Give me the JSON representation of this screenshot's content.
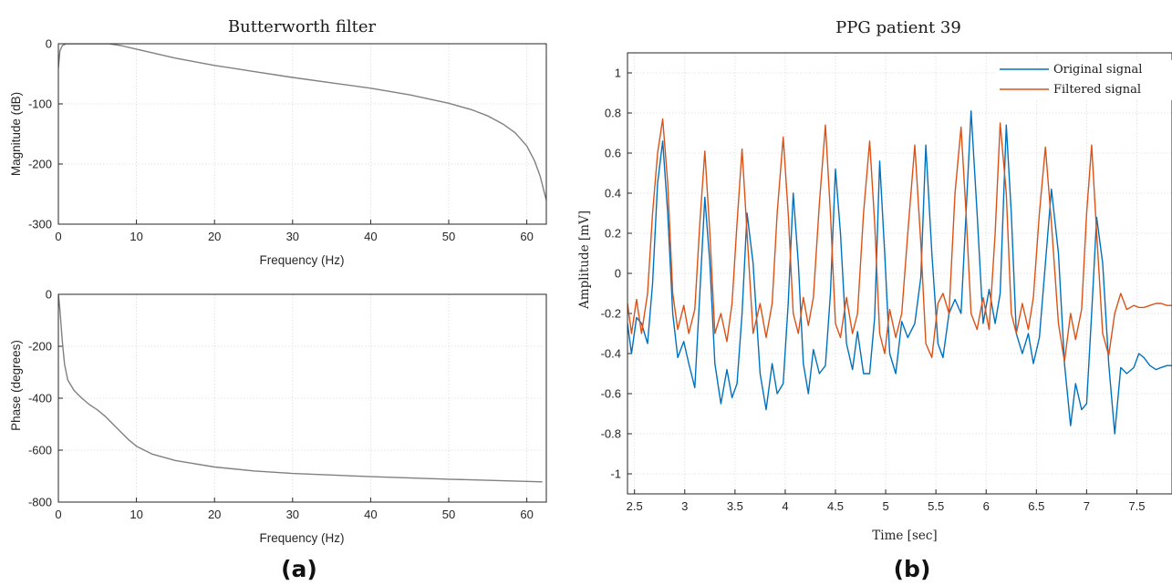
{
  "chart_data": [
    {
      "type": "line",
      "panel": "a-top",
      "title": "Butterworth filter",
      "xlabel": "Frequency (Hz)",
      "ylabel": "Magnitude (dB)",
      "xlim": [
        0,
        62.5
      ],
      "ylim": [
        -300,
        0
      ],
      "xticks": [
        0,
        10,
        20,
        30,
        40,
        50,
        60
      ],
      "yticks": [
        -300,
        -200,
        -100,
        0
      ],
      "grid": true,
      "color": "#808080",
      "series": [
        {
          "x": [
            0,
            0.2,
            0.5,
            1,
            2,
            3,
            5,
            6.5,
            8,
            10,
            15,
            20,
            25,
            30,
            35,
            40,
            45,
            50,
            53,
            55,
            57,
            58.5,
            60,
            61,
            61.7,
            62.2,
            62.5
          ],
          "y": [
            -40,
            -12,
            -3,
            0,
            0,
            0,
            0,
            0,
            -3,
            -9,
            -24,
            -36,
            -46,
            -56,
            -65,
            -74,
            -85,
            -99,
            -110,
            -120,
            -134,
            -148,
            -170,
            -195,
            -220,
            -245,
            -260
          ]
        }
      ]
    },
    {
      "type": "line",
      "panel": "a-bottom",
      "title": "",
      "xlabel": "Frequency (Hz)",
      "ylabel": "Phase (degrees)",
      "xlim": [
        0,
        62.5
      ],
      "ylim": [
        -800,
        0
      ],
      "xticks": [
        0,
        10,
        20,
        30,
        40,
        50,
        60
      ],
      "yticks": [
        -800,
        -600,
        -400,
        -200,
        0
      ],
      "grid": true,
      "color": "#808080",
      "series": [
        {
          "x": [
            0,
            0.2,
            0.5,
            0.8,
            1.2,
            2,
            3,
            4,
            5,
            6,
            7,
            8,
            9,
            10,
            12,
            15,
            20,
            25,
            30,
            40,
            50,
            62
          ],
          "y": [
            0,
            -60,
            -180,
            -270,
            -330,
            -370,
            -400,
            -425,
            -445,
            -470,
            -500,
            -530,
            -560,
            -585,
            -615,
            -640,
            -665,
            -680,
            -690,
            -702,
            -712,
            -722
          ]
        }
      ]
    },
    {
      "type": "line",
      "panel": "b",
      "title": "PPG patient 39",
      "xlabel": "Time [sec]",
      "ylabel": "Amplitude [mV]",
      "xlim": [
        2.43,
        7.85
      ],
      "ylim": [
        -1.1,
        1.1
      ],
      "xticks": [
        2.5,
        3,
        3.5,
        4,
        4.5,
        5,
        5.5,
        6,
        6.5,
        7,
        7.5
      ],
      "xtick_labels": [
        "2.5",
        "3",
        "3.5",
        "4",
        "4.5",
        "5",
        "5.5",
        "6",
        "6.5",
        "7",
        "7.5"
      ],
      "yticks": [
        -1,
        -0.8,
        -0.6,
        -0.4,
        -0.2,
        0,
        0.2,
        0.4,
        0.6,
        0.8,
        1
      ],
      "ytick_labels": [
        "-1",
        "-0.8",
        "-0.6",
        "-0.4",
        "-0.2",
        "0",
        "0.2",
        "0.4",
        "0.6",
        "0.8",
        "1"
      ],
      "grid": true,
      "legend": "top-right",
      "series": [
        {
          "name": "Original signal",
          "color": "#0072BD",
          "x": [
            2.43,
            2.47,
            2.52,
            2.57,
            2.63,
            2.68,
            2.73,
            2.78,
            2.83,
            2.88,
            2.93,
            2.99,
            3.04,
            3.1,
            3.15,
            3.2,
            3.25,
            3.3,
            3.36,
            3.42,
            3.47,
            3.52,
            3.57,
            3.62,
            3.68,
            3.75,
            3.81,
            3.87,
            3.92,
            3.98,
            4.03,
            4.08,
            4.13,
            4.18,
            4.23,
            4.28,
            4.34,
            4.4,
            4.45,
            4.5,
            4.55,
            4.61,
            4.67,
            4.72,
            4.78,
            4.84,
            4.89,
            4.94,
            4.99,
            5.04,
            5.1,
            5.16,
            5.22,
            5.29,
            5.35,
            5.4,
            5.46,
            5.52,
            5.57,
            5.63,
            5.69,
            5.75,
            5.8,
            5.85,
            5.91,
            5.97,
            6.03,
            6.09,
            6.14,
            6.2,
            6.25,
            6.3,
            6.36,
            6.42,
            6.47,
            6.53,
            6.59,
            6.65,
            6.72,
            6.78,
            6.84,
            6.89,
            6.95,
            7.0,
            7.05,
            7.1,
            7.16,
            7.22,
            7.28,
            7.34,
            7.4,
            7.47,
            7.52,
            7.57,
            7.63,
            7.69,
            7.74,
            7.8,
            7.85
          ],
          "y": [
            -0.25,
            -0.4,
            -0.22,
            -0.25,
            -0.35,
            -0.05,
            0.45,
            0.66,
            0.3,
            -0.2,
            -0.42,
            -0.34,
            -0.45,
            -0.57,
            -0.1,
            0.38,
            0.05,
            -0.45,
            -0.65,
            -0.48,
            -0.62,
            -0.55,
            -0.2,
            0.3,
            0.05,
            -0.5,
            -0.68,
            -0.45,
            -0.6,
            -0.55,
            -0.15,
            0.4,
            0.05,
            -0.45,
            -0.6,
            -0.38,
            -0.5,
            -0.46,
            -0.1,
            0.52,
            0.2,
            -0.35,
            -0.48,
            -0.29,
            -0.5,
            -0.5,
            -0.22,
            0.56,
            0.1,
            -0.4,
            -0.5,
            -0.24,
            -0.32,
            -0.25,
            -0.02,
            0.64,
            0.1,
            -0.35,
            -0.42,
            -0.2,
            -0.13,
            -0.2,
            0.3,
            0.81,
            0.3,
            -0.25,
            -0.08,
            -0.25,
            -0.1,
            0.74,
            0.3,
            -0.3,
            -0.4,
            -0.3,
            -0.45,
            -0.32,
            0.05,
            0.42,
            0.1,
            -0.45,
            -0.76,
            -0.55,
            -0.68,
            -0.65,
            -0.2,
            0.28,
            0.05,
            -0.45,
            -0.8,
            -0.47,
            -0.5,
            -0.47,
            -0.4,
            -0.42,
            -0.46,
            -0.48,
            -0.47,
            -0.46,
            -0.46
          ]
        },
        {
          "name": "Filtered signal",
          "color": "#D95319",
          "x": [
            2.43,
            2.47,
            2.52,
            2.57,
            2.63,
            2.68,
            2.73,
            2.78,
            2.83,
            2.88,
            2.93,
            2.99,
            3.04,
            3.1,
            3.15,
            3.2,
            3.25,
            3.3,
            3.36,
            3.42,
            3.47,
            3.52,
            3.57,
            3.62,
            3.68,
            3.75,
            3.81,
            3.87,
            3.92,
            3.98,
            4.03,
            4.08,
            4.13,
            4.18,
            4.23,
            4.28,
            4.34,
            4.4,
            4.45,
            4.5,
            4.55,
            4.61,
            4.67,
            4.72,
            4.78,
            4.84,
            4.89,
            4.94,
            4.99,
            5.04,
            5.1,
            5.16,
            5.22,
            5.29,
            5.35,
            5.4,
            5.46,
            5.52,
            5.57,
            5.63,
            5.69,
            5.75,
            5.8,
            5.85,
            5.91,
            5.97,
            6.03,
            6.09,
            6.14,
            6.2,
            6.25,
            6.3,
            6.36,
            6.42,
            6.47,
            6.53,
            6.59,
            6.65,
            6.72,
            6.78,
            6.84,
            6.89,
            6.95,
            7.0,
            7.05,
            7.1,
            7.16,
            7.22,
            7.28,
            7.34,
            7.4,
            7.47,
            7.52,
            7.57,
            7.63,
            7.69,
            7.74,
            7.8,
            7.85
          ],
          "y": [
            -0.15,
            -0.3,
            -0.13,
            -0.3,
            -0.1,
            0.3,
            0.6,
            0.77,
            0.45,
            -0.1,
            -0.28,
            -0.16,
            -0.3,
            -0.18,
            0.25,
            0.61,
            0.2,
            -0.3,
            -0.2,
            -0.34,
            -0.15,
            0.25,
            0.62,
            0.2,
            -0.3,
            -0.15,
            -0.32,
            -0.15,
            0.3,
            0.68,
            0.3,
            -0.2,
            -0.3,
            -0.12,
            -0.26,
            -0.12,
            0.35,
            0.74,
            0.3,
            -0.25,
            -0.32,
            -0.12,
            -0.3,
            -0.2,
            0.3,
            0.66,
            0.25,
            -0.3,
            -0.4,
            -0.18,
            -0.32,
            -0.2,
            0.2,
            0.64,
            0.15,
            -0.35,
            -0.42,
            -0.15,
            -0.1,
            -0.2,
            0.4,
            0.73,
            0.3,
            -0.2,
            -0.28,
            -0.12,
            -0.28,
            0.2,
            0.75,
            0.4,
            -0.2,
            -0.3,
            -0.15,
            -0.28,
            -0.12,
            0.3,
            0.63,
            0.25,
            -0.25,
            -0.44,
            -0.2,
            -0.33,
            -0.18,
            0.3,
            0.64,
            0.2,
            -0.3,
            -0.41,
            -0.2,
            -0.1,
            -0.18,
            -0.16,
            -0.17,
            -0.17,
            -0.16,
            -0.15,
            -0.15,
            -0.16,
            -0.16
          ]
        }
      ]
    }
  ],
  "captions": {
    "left": "(a)",
    "right": "(b)"
  }
}
